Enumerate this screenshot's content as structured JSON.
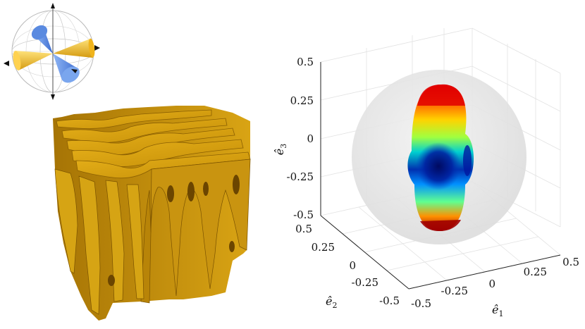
{
  "left_panel": {
    "inset_icon": "orientation-sphere-with-cones",
    "structure": "lamellar-3d-microstructure",
    "colors": {
      "gold": "#d4a017",
      "blue": "#6f9fe8"
    }
  },
  "right_panel": {
    "plot_type": "3d-orientation-distribution-surface",
    "axes": {
      "e3": {
        "label": "ê3",
        "label_base": "ê",
        "label_sub": "3",
        "ticks": [
          "0.5",
          "0.25",
          "0",
          "-0.25",
          "-0.5"
        ]
      },
      "e2": {
        "label": "ê2",
        "label_base": "ê",
        "label_sub": "2",
        "ticks": [
          "0.5",
          "0.25",
          "0",
          "-0.25",
          "-0.5"
        ]
      },
      "e1": {
        "label": "ê1",
        "label_base": "ê",
        "label_sub": "1",
        "ticks": [
          "-0.5",
          "-0.25",
          "0",
          "0.25",
          "0.5"
        ]
      }
    },
    "colormap": "jet",
    "reference_sphere": "translucent-gray"
  }
}
